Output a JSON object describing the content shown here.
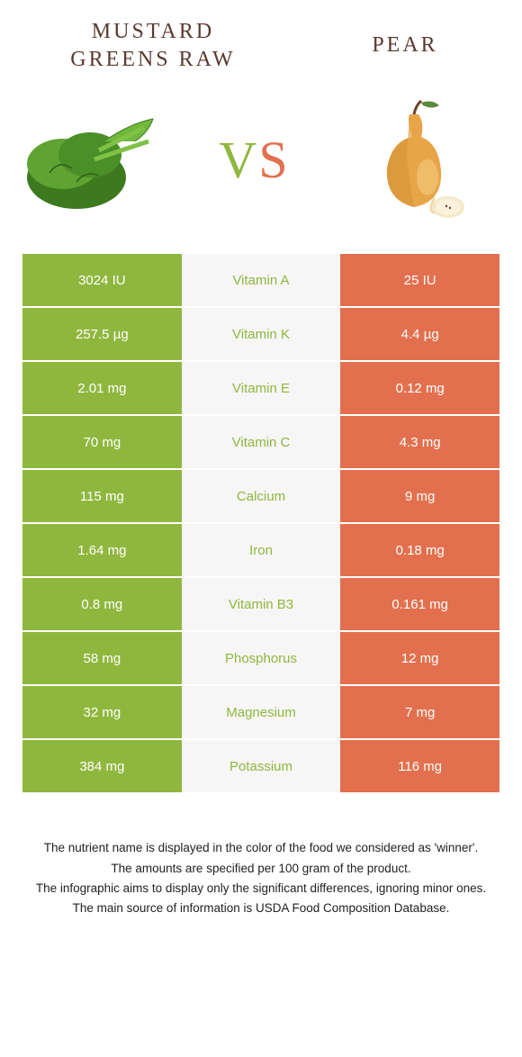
{
  "colors": {
    "green": "#8fb73e",
    "orange": "#e2704e",
    "midbg": "#f6f6f6",
    "title": "#5a3a2e"
  },
  "header": {
    "left": "Mustard Greens Raw",
    "right": "Pear",
    "vs": "VS"
  },
  "rows": [
    {
      "left": "3024 IU",
      "mid": "Vitamin A",
      "right": "25 IU",
      "winner": "left"
    },
    {
      "left": "257.5 µg",
      "mid": "Vitamin K",
      "right": "4.4 µg",
      "winner": "left"
    },
    {
      "left": "2.01 mg",
      "mid": "Vitamin E",
      "right": "0.12 mg",
      "winner": "left"
    },
    {
      "left": "70 mg",
      "mid": "Vitamin C",
      "right": "4.3 mg",
      "winner": "left"
    },
    {
      "left": "115 mg",
      "mid": "Calcium",
      "right": "9 mg",
      "winner": "left"
    },
    {
      "left": "1.64 mg",
      "mid": "Iron",
      "right": "0.18 mg",
      "winner": "left"
    },
    {
      "left": "0.8 mg",
      "mid": "Vitamin B3",
      "right": "0.161 mg",
      "winner": "left"
    },
    {
      "left": "58 mg",
      "mid": "Phosphorus",
      "right": "12 mg",
      "winner": "left"
    },
    {
      "left": "32 mg",
      "mid": "Magnesium",
      "right": "7 mg",
      "winner": "left"
    },
    {
      "left": "384 mg",
      "mid": "Potassium",
      "right": "116 mg",
      "winner": "left"
    }
  ],
  "footer": {
    "line1": "The nutrient name is displayed in the color of the food we considered as 'winner'.",
    "line2": "The amounts are specified per 100 gram of the product.",
    "line3": "The infographic aims to display only the significant differences, ignoring minor ones.",
    "line4": "The main source of information is USDA Food Composition Database."
  }
}
